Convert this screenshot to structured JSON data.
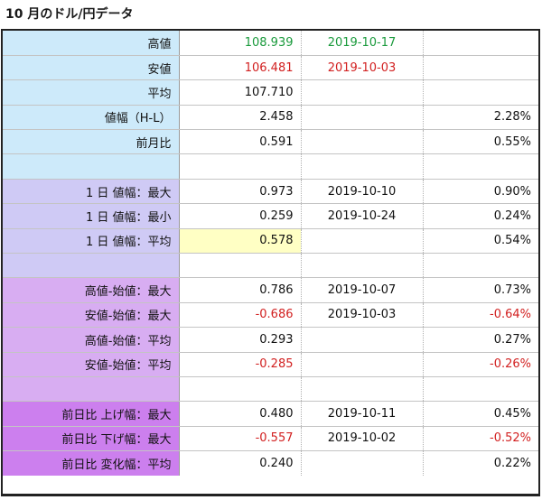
{
  "title": "10 月のドル/円データ",
  "colors": {
    "green": "#1a9a3c",
    "red": "#d22020",
    "highlight": "#ffffc4"
  },
  "rows": [
    {
      "group": "blue",
      "label": "高値",
      "value": "108.939",
      "date": "2019-10-17",
      "pct": "",
      "value_color": "green",
      "date_color": "green"
    },
    {
      "group": "blue",
      "label": "安値",
      "value": "106.481",
      "date": "2019-10-03",
      "pct": "",
      "value_color": "red",
      "date_color": "red"
    },
    {
      "group": "blue",
      "label": "平均",
      "value": "107.710",
      "date": "",
      "pct": ""
    },
    {
      "group": "blue",
      "label": "値幅（H-L）",
      "value": "2.458",
      "date": "",
      "pct": "2.28%"
    },
    {
      "group": "blue",
      "label": "前月比",
      "value": "0.591",
      "date": "",
      "pct": "0.55%"
    },
    {
      "group": "blue",
      "label": "",
      "value": "",
      "date": "",
      "pct": ""
    },
    {
      "group": "lav",
      "label": "1 日 値幅：最大",
      "value": "0.973",
      "date": "2019-10-10",
      "pct": "0.90%"
    },
    {
      "group": "lav",
      "label": "1 日 値幅：最小",
      "value": "0.259",
      "date": "2019-10-24",
      "pct": "0.24%"
    },
    {
      "group": "lav",
      "label": "1 日 値幅：平均",
      "value": "0.578",
      "date": "",
      "pct": "0.54%",
      "highlight": true
    },
    {
      "group": "lav",
      "label": "",
      "value": "",
      "date": "",
      "pct": ""
    },
    {
      "group": "violet",
      "label": "高値-始値：最大",
      "value": "0.786",
      "date": "2019-10-07",
      "pct": "0.73%"
    },
    {
      "group": "violet",
      "label": "安値-始値：最大",
      "value": "-0.686",
      "date": "2019-10-03",
      "pct": "-0.64%",
      "value_color": "red",
      "pct_color": "red"
    },
    {
      "group": "violet",
      "label": "高値-始値：平均",
      "value": "0.293",
      "date": "",
      "pct": "0.27%"
    },
    {
      "group": "violet",
      "label": "安値-始値：平均",
      "value": "-0.285",
      "date": "",
      "pct": "-0.26%",
      "value_color": "red",
      "pct_color": "red"
    },
    {
      "group": "violet",
      "label": "",
      "value": "",
      "date": "",
      "pct": ""
    },
    {
      "group": "mag",
      "label": "前日比 上げ幅：最大",
      "value": "0.480",
      "date": "2019-10-11",
      "pct": "0.45%"
    },
    {
      "group": "mag",
      "label": "前日比 下げ幅：最大",
      "value": "-0.557",
      "date": "2019-10-02",
      "pct": "-0.52%",
      "value_color": "red",
      "pct_color": "red"
    },
    {
      "group": "mag",
      "label": "前日比 変化幅：平均",
      "value": "0.240",
      "date": "",
      "pct": "0.22%"
    }
  ]
}
